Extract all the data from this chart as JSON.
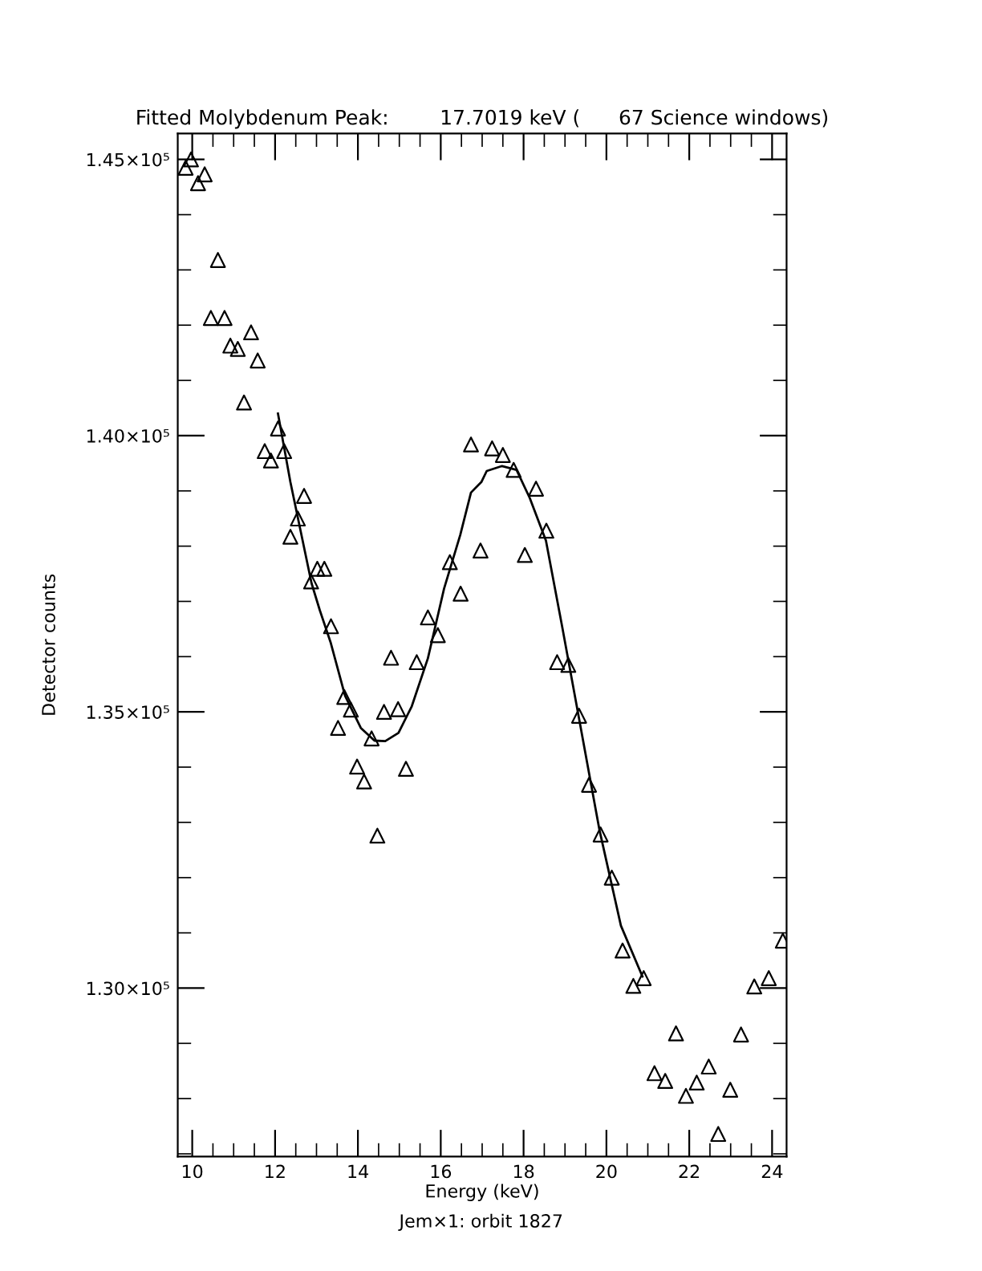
{
  "chart_data": {
    "type": "scatter",
    "title": "Fitted Molybdenum Peak:        17.7019 keV (      67 Science windows)",
    "xlabel": "Energy (keV)",
    "ylabel": "Detector counts",
    "annotations": [
      "Jem×1: orbit 1827"
    ],
    "series": [
      {
        "marker": "triangle",
        "color": "#000000",
        "x": [
          9.84,
          9.97,
          10.14,
          10.3,
          10.45,
          10.62,
          10.78,
          10.92,
          11.1,
          11.25,
          11.42,
          11.58,
          11.75,
          11.9,
          12.07,
          12.22,
          12.37,
          12.55,
          12.7,
          12.87,
          13.02,
          13.19,
          13.35,
          13.52,
          13.67,
          13.83,
          13.98,
          14.15,
          14.33,
          14.47,
          14.63,
          14.8,
          14.97,
          15.16,
          15.42,
          15.69,
          15.93,
          16.22,
          16.48,
          16.73,
          16.96,
          17.24,
          17.5,
          17.76,
          18.03,
          18.3,
          18.55,
          18.81,
          19.08,
          19.34,
          19.58,
          19.86,
          20.13,
          20.39,
          20.65,
          20.9,
          21.16,
          21.42,
          21.68,
          21.92,
          22.18,
          22.47,
          22.7,
          22.99,
          23.25,
          23.57,
          23.92,
          24.26
        ],
        "values": [
          144850,
          145000,
          144570,
          144730,
          142130,
          143180,
          142130,
          141630,
          141570,
          140600,
          141870,
          141360,
          139720,
          139550,
          140130,
          139720,
          138170,
          138500,
          138910,
          137360,
          137590,
          137590,
          136550,
          134710,
          135270,
          135040,
          134010,
          133740,
          134520,
          132760,
          135000,
          135980,
          135050,
          133970,
          135900,
          136710,
          136390,
          137710,
          137140,
          139840,
          137920,
          139770,
          139650,
          139380,
          137840,
          139040,
          138280,
          135900,
          135850,
          134930,
          133680,
          132780,
          132000,
          130680,
          130040,
          130180,
          128460,
          128320,
          129180,
          128050,
          128290,
          128580,
          127360,
          128160,
          129160,
          130030,
          130180,
          130860
        ]
      },
      {
        "type": "line",
        "marker": "none",
        "line_style": "solid",
        "color": "#000000",
        "x": [
          12.07,
          12.37,
          12.88,
          13.08,
          13.34,
          13.69,
          14.07,
          14.4,
          14.66,
          14.98,
          15.3,
          15.69,
          16.08,
          16.47,
          16.73,
          16.98,
          17.11,
          17.48,
          17.83,
          18.15,
          18.54,
          18.93,
          19.31,
          19.83,
          20.35,
          20.87
        ],
        "values": [
          140400,
          139160,
          137330,
          136840,
          136260,
          135290,
          134710,
          134480,
          134470,
          134620,
          135100,
          135970,
          137230,
          138200,
          138970,
          139160,
          139360,
          139450,
          139380,
          138870,
          138100,
          136550,
          135000,
          132870,
          131130,
          130210
        ]
      }
    ],
    "xlim": [
      9.65,
      24.35
    ],
    "ylim": [
      126950,
      145470
    ],
    "xticks": [
      10,
      {
        "value": 10.5,
        "label": null
      },
      {
        "value": 11,
        "label": null
      },
      {
        "value": 11.5,
        "label": null
      },
      12,
      {
        "value": 12.5,
        "label": null
      },
      {
        "value": 13,
        "label": null
      },
      {
        "value": 13.5,
        "label": null
      },
      14,
      {
        "value": 14.5,
        "label": null
      },
      {
        "value": 15,
        "label": null
      },
      {
        "value": 15.5,
        "label": null
      },
      16,
      {
        "value": 16.5,
        "label": null
      },
      {
        "value": 17,
        "label": null
      },
      {
        "value": 17.5,
        "label": null
      },
      18,
      {
        "value": 18.5,
        "label": null
      },
      {
        "value": 19,
        "label": null
      },
      {
        "value": 19.5,
        "label": null
      },
      20,
      {
        "value": 20.5,
        "label": null
      },
      {
        "value": 21,
        "label": null
      },
      {
        "value": 21.5,
        "label": null
      },
      22,
      {
        "value": 22.5,
        "label": null
      },
      {
        "value": 23,
        "label": null
      },
      {
        "value": 23.5,
        "label": null
      },
      24
    ],
    "yticks": [
      {
        "value": 127000,
        "label": null
      },
      {
        "value": 128000,
        "label": null
      },
      {
        "value": 129000,
        "label": null
      },
      {
        "value": 130000,
        "label": "1.30×10⁵"
      },
      {
        "value": 131000,
        "label": null
      },
      {
        "value": 132000,
        "label": null
      },
      {
        "value": 133000,
        "label": null
      },
      {
        "value": 134000,
        "label": null
      },
      {
        "value": 135000,
        "label": "1.35×10⁵"
      },
      {
        "value": 136000,
        "label": null
      },
      {
        "value": 137000,
        "label": null
      },
      {
        "value": 138000,
        "label": null
      },
      {
        "value": 139000,
        "label": null
      },
      {
        "value": 140000,
        "label": "1.40×10⁵"
      },
      {
        "value": 141000,
        "label": null
      },
      {
        "value": 142000,
        "label": null
      },
      {
        "value": 143000,
        "label": null
      },
      {
        "value": 144000,
        "label": null
      },
      {
        "value": 145000,
        "label": "1.45×10⁵"
      }
    ],
    "grid": false,
    "legend": false
  }
}
